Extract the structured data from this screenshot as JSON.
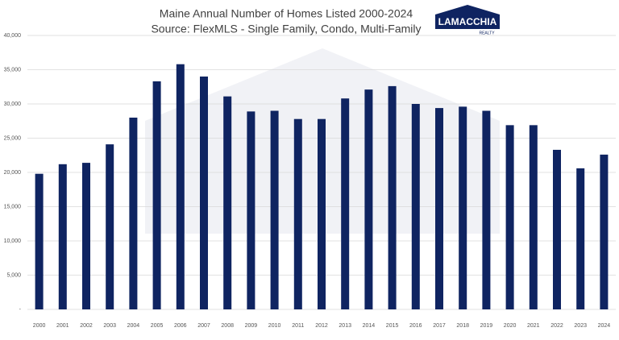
{
  "chart_data": {
    "type": "bar",
    "title": "Maine Annual Number of Homes Listed 2000-2024",
    "subtitle": "Source: FlexMLS - Single Family, Condo, Multi-Family",
    "logo": {
      "name": "LAMACCHIA",
      "tagline": "REALTY"
    },
    "categories": [
      "2000",
      "2001",
      "2002",
      "2003",
      "2004",
      "2005",
      "2006",
      "2007",
      "2008",
      "2009",
      "2010",
      "2011",
      "2012",
      "2013",
      "2014",
      "2015",
      "2016",
      "2017",
      "2018",
      "2019",
      "2020",
      "2021",
      "2022",
      "2023",
      "2024"
    ],
    "values": [
      19800,
      21200,
      21400,
      24100,
      28000,
      33300,
      35800,
      34000,
      31100,
      28900,
      29000,
      27800,
      27800,
      30800,
      32100,
      32600,
      30000,
      29400,
      29600,
      29000,
      26900,
      26900,
      23300,
      20600,
      22600
    ],
    "color": "#0f2461",
    "ylim": [
      0,
      40000
    ],
    "yticks": [
      {
        "value": 0,
        "label": "-"
      },
      {
        "value": 5000,
        "label": "5,000"
      },
      {
        "value": 10000,
        "label": "10,000"
      },
      {
        "value": 15000,
        "label": "15,000"
      },
      {
        "value": 20000,
        "label": "20,000"
      },
      {
        "value": 25000,
        "label": "25,000"
      },
      {
        "value": 30000,
        "label": "30,000"
      },
      {
        "value": 35000,
        "label": "35,000"
      },
      {
        "value": 40000,
        "label": "40,000"
      }
    ],
    "grid": true
  }
}
